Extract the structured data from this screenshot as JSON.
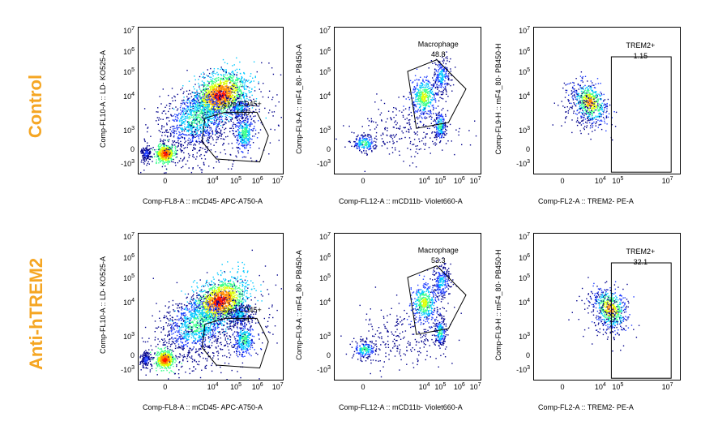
{
  "rows": [
    {
      "label": "Control"
    },
    {
      "label": "Anti-hTREM2"
    }
  ],
  "chart_data": [
    {
      "type": "scatter",
      "row": "Control",
      "plot": "cd45",
      "xlabel": "Comp-FL8-A :: mCD45- APC-A750-A",
      "ylabel": "Comp-FL10-A :: LD- KO525-A",
      "gate": {
        "name": "Live CD45+",
        "value": "4.65"
      }
    },
    {
      "type": "scatter",
      "row": "Control",
      "plot": "cd11b",
      "xlabel": "Comp-FL12-A :: mCD11b- Violet660-A",
      "ylabel": "Comp-FL9-A :: mF4_80- PB450-A",
      "gate": {
        "name": "Macrophage",
        "value": "48.8"
      }
    },
    {
      "type": "scatter",
      "row": "Control",
      "plot": "trem2",
      "xlabel": "Comp-FL2-A :: TREM2- PE-A",
      "ylabel": "Comp-FL9-H :: mF4_80- PB450-H",
      "gate": {
        "name": "TREM2+",
        "value": "1.15"
      }
    },
    {
      "type": "scatter",
      "row": "Anti-hTREM2",
      "plot": "cd45",
      "xlabel": "Comp-FL8-A :: mCD45- APC-A750-A",
      "ylabel": "Comp-FL10-A :: LD- KO525-A",
      "gate": {
        "name": "Live CD45+",
        "value": "4.54"
      }
    },
    {
      "type": "scatter",
      "row": "Anti-hTREM2",
      "plot": "cd11b",
      "xlabel": "Comp-FL12-A :: mCD11b- Violet660-A",
      "ylabel": "Comp-FL9-A :: mF4_80- PB450-A",
      "gate": {
        "name": "Macrophage",
        "value": "53.3"
      }
    },
    {
      "type": "scatter",
      "row": "Anti-hTREM2",
      "plot": "trem2",
      "xlabel": "Comp-FL2-A :: TREM2- PE-A",
      "ylabel": "Comp-FL9-H :: mF4_80- PB450-H",
      "gate": {
        "name": "TREM2+",
        "value": "32.1"
      }
    }
  ],
  "axis_ticks": {
    "y_cd45": [
      "10^7",
      "10^6",
      "10^5",
      "10^4",
      "10^3",
      "0",
      "-10^3"
    ],
    "x_cd45": [
      "0",
      "10^4",
      "10^5",
      "10^6",
      "10^7"
    ],
    "y_std": [
      "10^7",
      "10^6",
      "10^5",
      "10^4",
      "10^3",
      "0",
      "-10^3"
    ],
    "x_cd11b": [
      "0",
      "10^4",
      "10^5",
      "10^6",
      "10^7"
    ],
    "x_trem2": [
      "0",
      "10^4",
      "10^5",
      "10^7"
    ]
  },
  "density_colors": [
    "#00008b",
    "#1e3cff",
    "#00c8ff",
    "#3cff8c",
    "#dcff00",
    "#ff8c00",
    "#ff1400"
  ]
}
